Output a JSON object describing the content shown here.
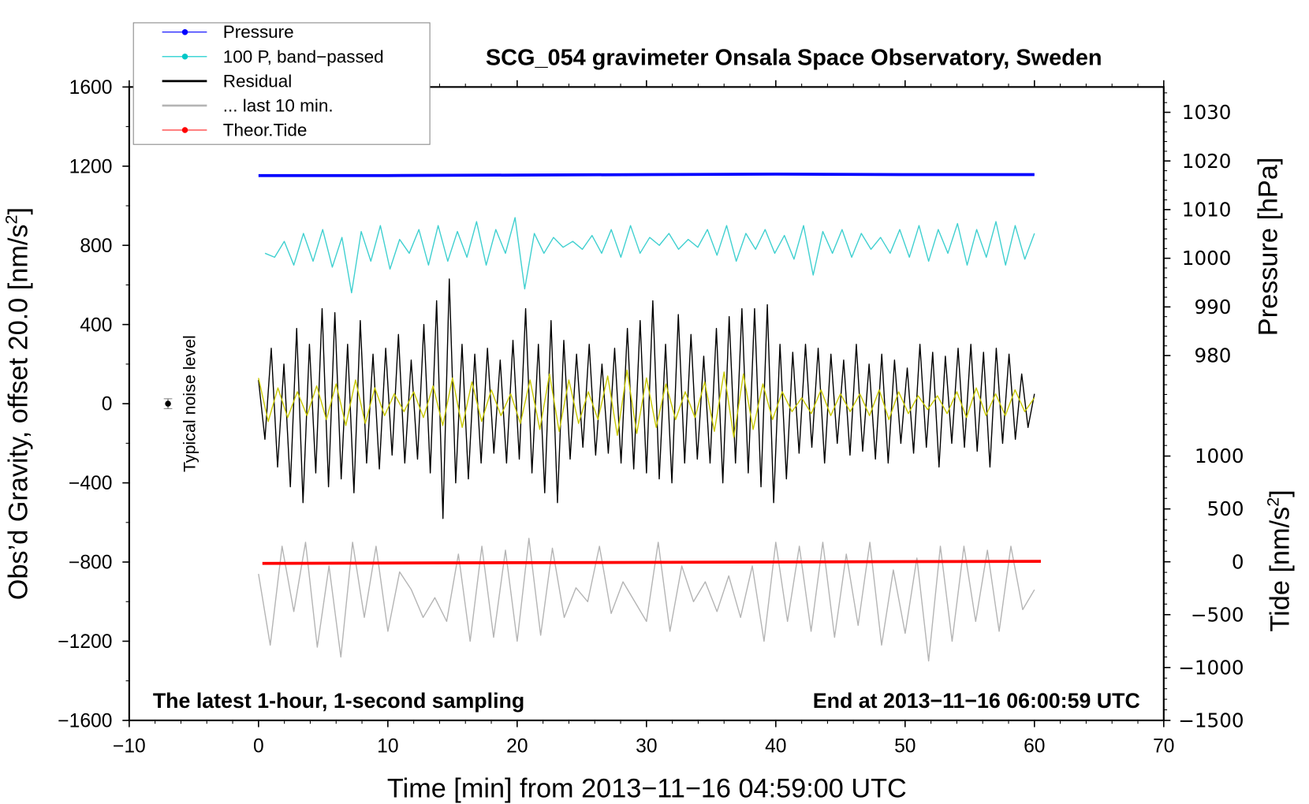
{
  "chart_data": {
    "type": "line",
    "title": "SCG_054 gravimeter Onsala Space Observatory, Sweden",
    "xlabel": "Time [min] from 2013−11−16 04:59:00 UTC",
    "ylabel": "Obs’d Gravity, offset 20.0 [nm/s",
    "ylabel_sup": "2",
    "ylabel_end": "]",
    "y2label": "Pressure [hPa]",
    "y3label": "Tide [nm/s",
    "y3label_sup": "2",
    "y3label_end": "]",
    "xlim": [
      -10,
      70
    ],
    "ylim": [
      -1600,
      1600
    ],
    "pressure_lim": [
      980,
      1030
    ],
    "tide_lim": [
      -1500,
      1000
    ],
    "xticks": [
      "−10",
      "0",
      "10",
      "20",
      "30",
      "40",
      "50",
      "60",
      "70"
    ],
    "yticks": [
      "1600",
      "1200",
      "800",
      "400",
      "0",
      "−400",
      "−800",
      "−1200",
      "−1600"
    ],
    "pressure_ticks": [
      "1030",
      "1020",
      "1010",
      "1000",
      "990",
      "980"
    ],
    "tide_ticks": [
      "1000",
      "500",
      "0",
      "−500",
      "−1000",
      "−1500"
    ],
    "annotation_left": "The latest 1-hour, 1-second sampling",
    "annotation_right": "End at 2013−11−16 06:00:59 UTC",
    "noise_label": "Typical noise level",
    "noise_marker": {
      "x": -7,
      "y": 0,
      "err": 25
    },
    "legend": [
      {
        "label": "Pressure",
        "color": "#0000ff",
        "marker": true
      },
      {
        "label": "100 P, band−passed",
        "color": "#00c8c8",
        "marker": true
      },
      {
        "label": "Residual",
        "color": "#000000",
        "marker": false
      },
      {
        "label": "... last 10 min.",
        "color": "#b4b4b4",
        "marker": false
      },
      {
        "label": "Theor.Tide",
        "color": "#ff0000",
        "marker": true
      }
    ],
    "legend_placement": "top-left",
    "series": [
      {
        "name": "Pressure",
        "axis": "pressure",
        "color": "#0000ff",
        "x": [
          0,
          10,
          20,
          30,
          40,
          50,
          60
        ],
        "values": [
          1017.0,
          1017.0,
          1017.1,
          1017.2,
          1017.3,
          1017.2,
          1017.2
        ]
      },
      {
        "name": "100 P, band-passed",
        "axis": "gravity",
        "color": "#40d0d0",
        "x0": 0.5,
        "x1": 60,
        "values": [
          760,
          740,
          820,
          700,
          860,
          720,
          880,
          690,
          840,
          560,
          870,
          720,
          900,
          680,
          830,
          760,
          880,
          700,
          900,
          720,
          870,
          740,
          920,
          700,
          880,
          760,
          940,
          580,
          860,
          760,
          840,
          790,
          820,
          780,
          850,
          760,
          880,
          740,
          900,
          760,
          840,
          800,
          860,
          780,
          830,
          790,
          880,
          750,
          900,
          720,
          860,
          780,
          880,
          760,
          850,
          730,
          900,
          650,
          870,
          760,
          880,
          740,
          860,
          780,
          840,
          760,
          880,
          740,
          900,
          720,
          880,
          760,
          910,
          700,
          880,
          740,
          920,
          700,
          900,
          730,
          860
        ]
      },
      {
        "name": "Residual",
        "axis": "gravity",
        "color": "#000000",
        "x0": 0,
        "x1": 60,
        "values": [
          120,
          -180,
          280,
          -320,
          200,
          -420,
          380,
          -500,
          300,
          -350,
          480,
          -420,
          460,
          -380,
          300,
          -450,
          420,
          -300,
          250,
          -330,
          280,
          -260,
          350,
          -300,
          220,
          -280,
          400,
          -350,
          520,
          -580,
          630,
          -400,
          300,
          -380,
          250,
          -300,
          280,
          -250,
          220,
          -300,
          320,
          -280,
          480,
          -350,
          300,
          -450,
          420,
          -500,
          320,
          -280,
          250,
          -220,
          300,
          -260,
          200,
          -250,
          280,
          -300,
          380,
          -330,
          420,
          -350,
          520,
          -380,
          300,
          -400,
          450,
          -300,
          350,
          -280,
          240,
          -300,
          380,
          -400,
          440,
          -300,
          480,
          -350,
          480,
          -420,
          500,
          -500,
          300,
          -380,
          260,
          -250,
          300,
          -220,
          280,
          -300,
          250,
          -200,
          220,
          -260,
          300,
          -240,
          200,
          -280,
          250,
          -300,
          220,
          -200,
          180,
          -250,
          300,
          -220,
          260,
          -320,
          240,
          -200,
          280,
          -220,
          300,
          -240,
          260,
          -320,
          280,
          -200,
          250,
          -180,
          150,
          -120,
          50
        ]
      },
      {
        "name": "Residual (yellow overlay)",
        "axis": "gravity",
        "color": "#c8c800",
        "x0": 0,
        "x1": 60,
        "values": [
          130,
          -90,
          80,
          -70,
          60,
          -60,
          90,
          -80,
          100,
          -110,
          120,
          -100,
          80,
          -60,
          50,
          -40,
          60,
          -70,
          90,
          -110,
          130,
          -120,
          110,
          -90,
          70,
          -60,
          50,
          -100,
          120,
          -130,
          150,
          -140,
          120,
          -100,
          60,
          -80,
          140,
          -160,
          170,
          -150,
          130,
          -120,
          100,
          -80,
          60,
          -70,
          110,
          -140,
          160,
          -170,
          150,
          -130,
          100,
          -80,
          60,
          -40,
          30,
          -50,
          70,
          -60,
          50,
          -40,
          50,
          -60,
          70,
          -80,
          60,
          -50,
          40,
          -30,
          40,
          -50,
          60,
          -70,
          80,
          -60,
          50,
          -60,
          70,
          -40,
          30
        ]
      },
      {
        "name": "... last 10 min.",
        "axis": "gravity",
        "color": "#b4b4b4",
        "x0": 0,
        "x1": 60,
        "values": [
          -860,
          -1220,
          -720,
          -1050,
          -700,
          -1230,
          -820,
          -1280,
          -700,
          -1080,
          -720,
          -1150,
          -850,
          -940,
          -1080,
          -980,
          -1100,
          -760,
          -1200,
          -720,
          -1180,
          -740,
          -1200,
          -680,
          -1170,
          -730,
          -1080,
          -930,
          -1000,
          -720,
          -1060,
          -900,
          -1000,
          -1100,
          -700,
          -1150,
          -820,
          -1000,
          -900,
          -1050,
          -870,
          -1080,
          -820,
          -1200,
          -700,
          -1100,
          -720,
          -1150,
          -700,
          -1180,
          -760,
          -1120,
          -700,
          -1220,
          -840,
          -1160,
          -780,
          -1300,
          -720,
          -1200,
          -720,
          -1100,
          -740,
          -1150,
          -720,
          -1040,
          -940
        ]
      },
      {
        "name": "Theor.Tide",
        "axis": "tide",
        "color": "#ff0000",
        "x": [
          0.3,
          60.5
        ],
        "values": [
          -15,
          5
        ]
      }
    ]
  }
}
